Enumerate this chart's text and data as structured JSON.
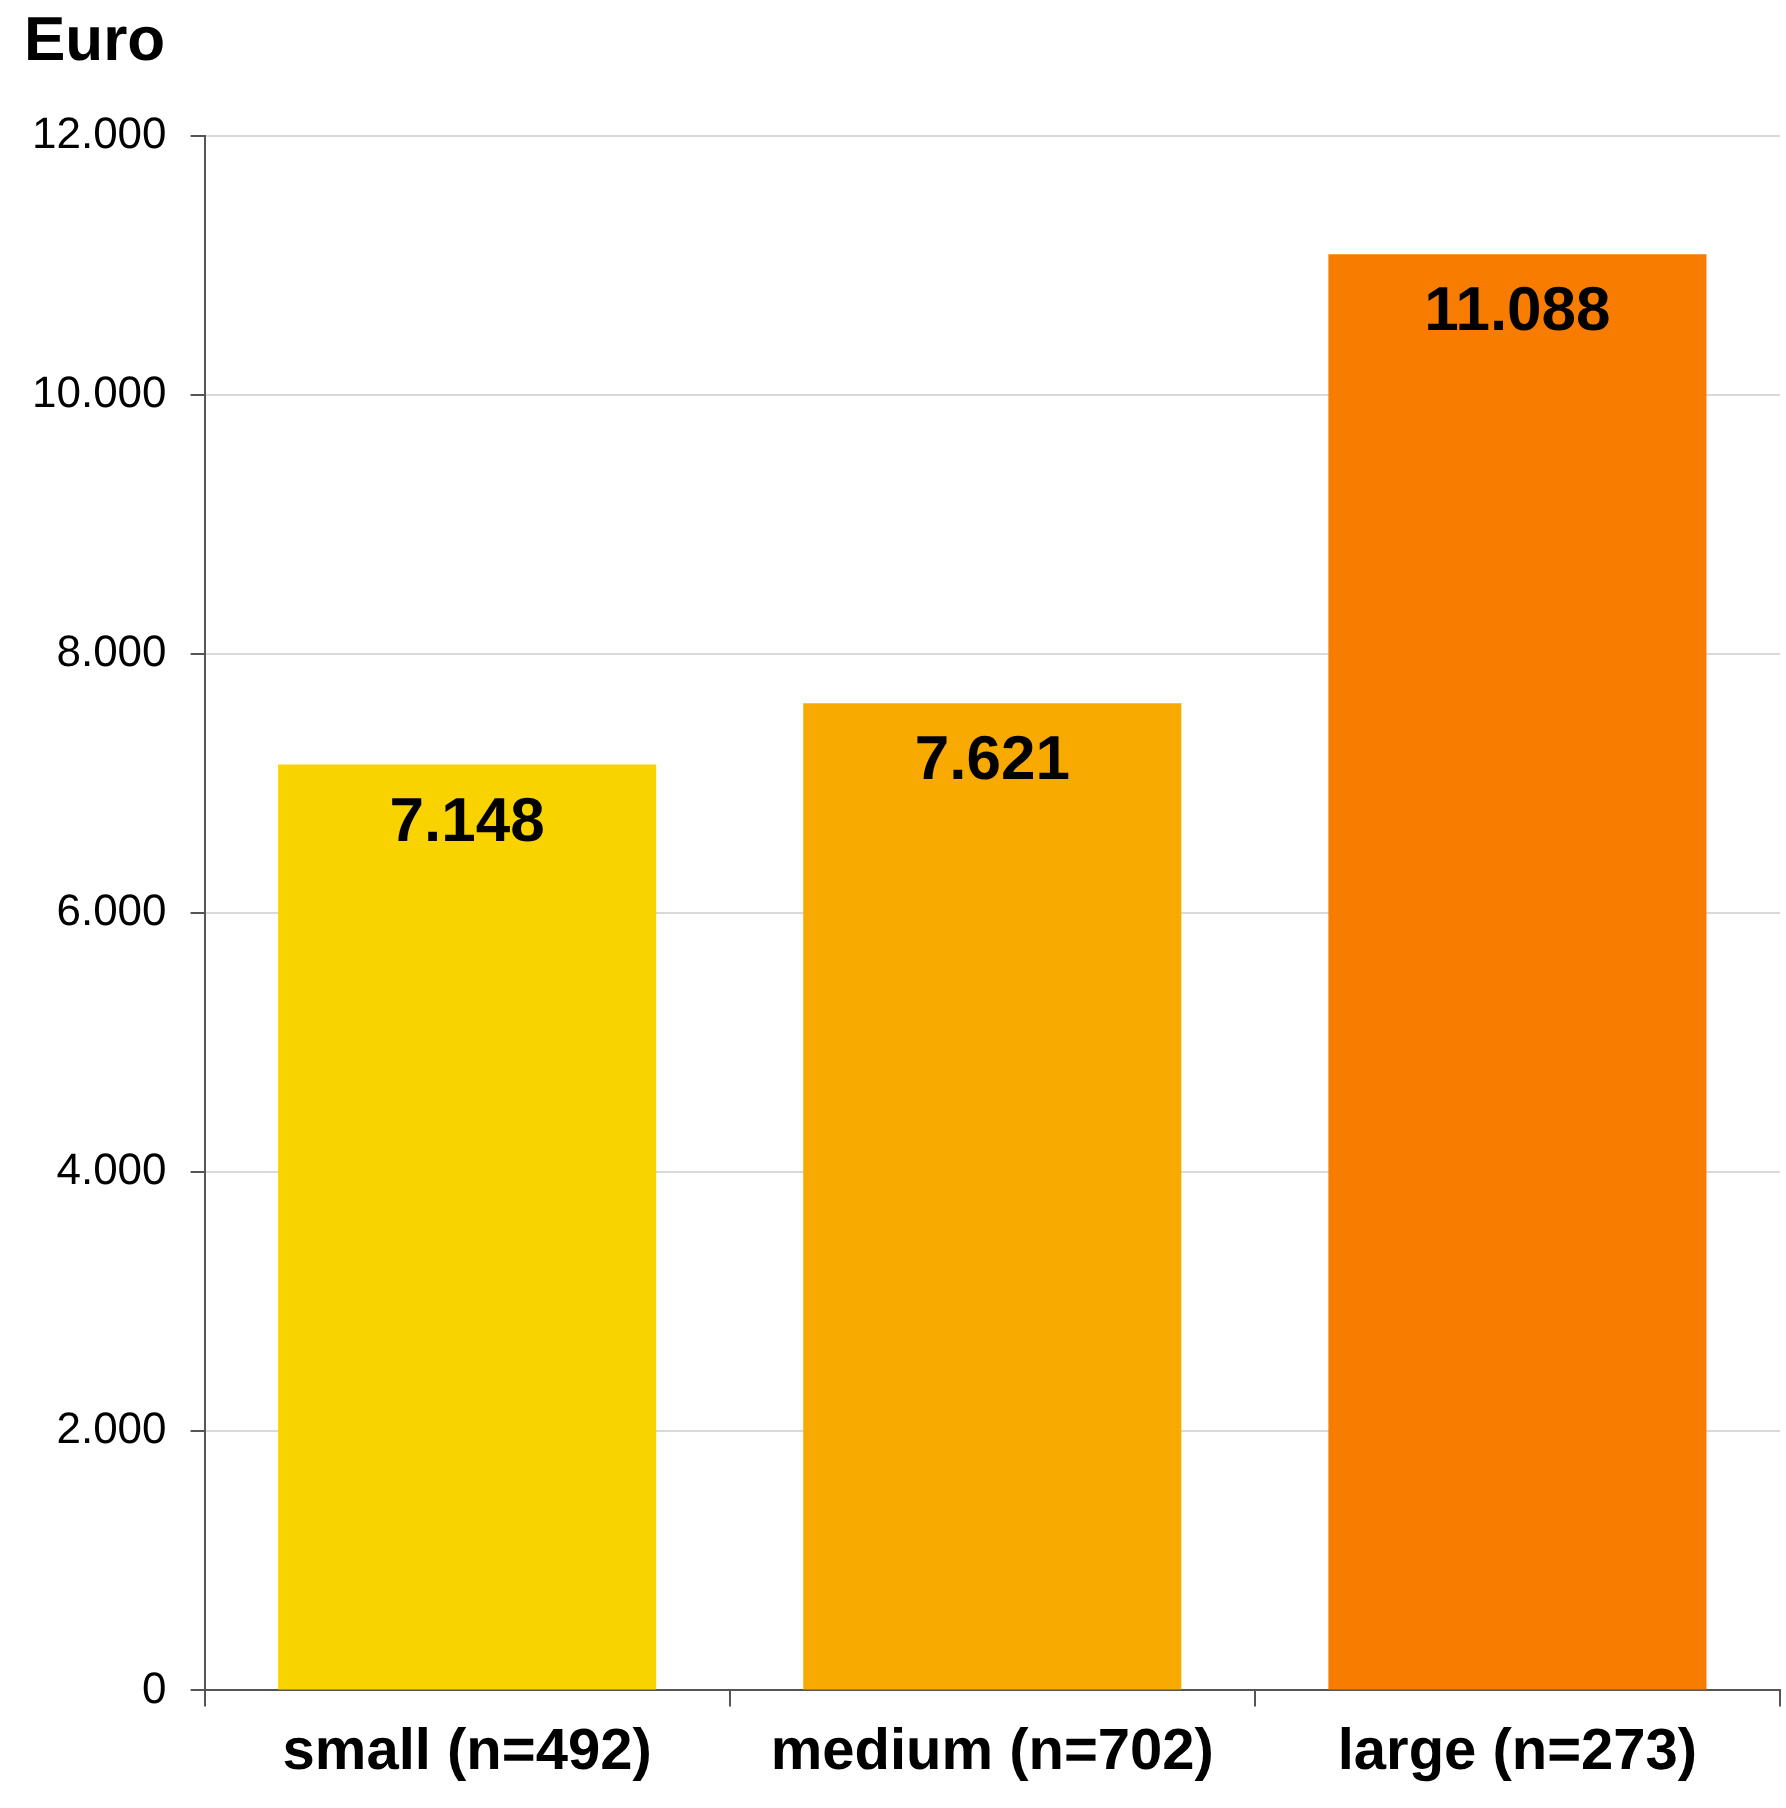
{
  "chart_data": {
    "type": "bar",
    "ylabel": "Euro",
    "categories": [
      "small (n=492)",
      "medium (n=702)",
      "large (n=273)"
    ],
    "values": [
      7148,
      7621,
      11088
    ],
    "colors": [
      "#f9d300",
      "#f9aa00",
      "#f87c00"
    ],
    "value_labels": [
      "7.148",
      "7.621",
      "11.088"
    ],
    "ylim": [
      0,
      12000
    ],
    "yticks": [
      0,
      {
        "value": 2000,
        "label": "2.000"
      },
      {
        "value": 4000,
        "label": "4.000"
      },
      {
        "value": 6000,
        "label": "6.000"
      },
      {
        "value": 8000,
        "label": "8.000"
      },
      {
        "value": 10000,
        "label": "10.000"
      },
      {
        "value": 12000,
        "label": "12.000"
      }
    ],
    "grid": "y",
    "legend": false
  }
}
